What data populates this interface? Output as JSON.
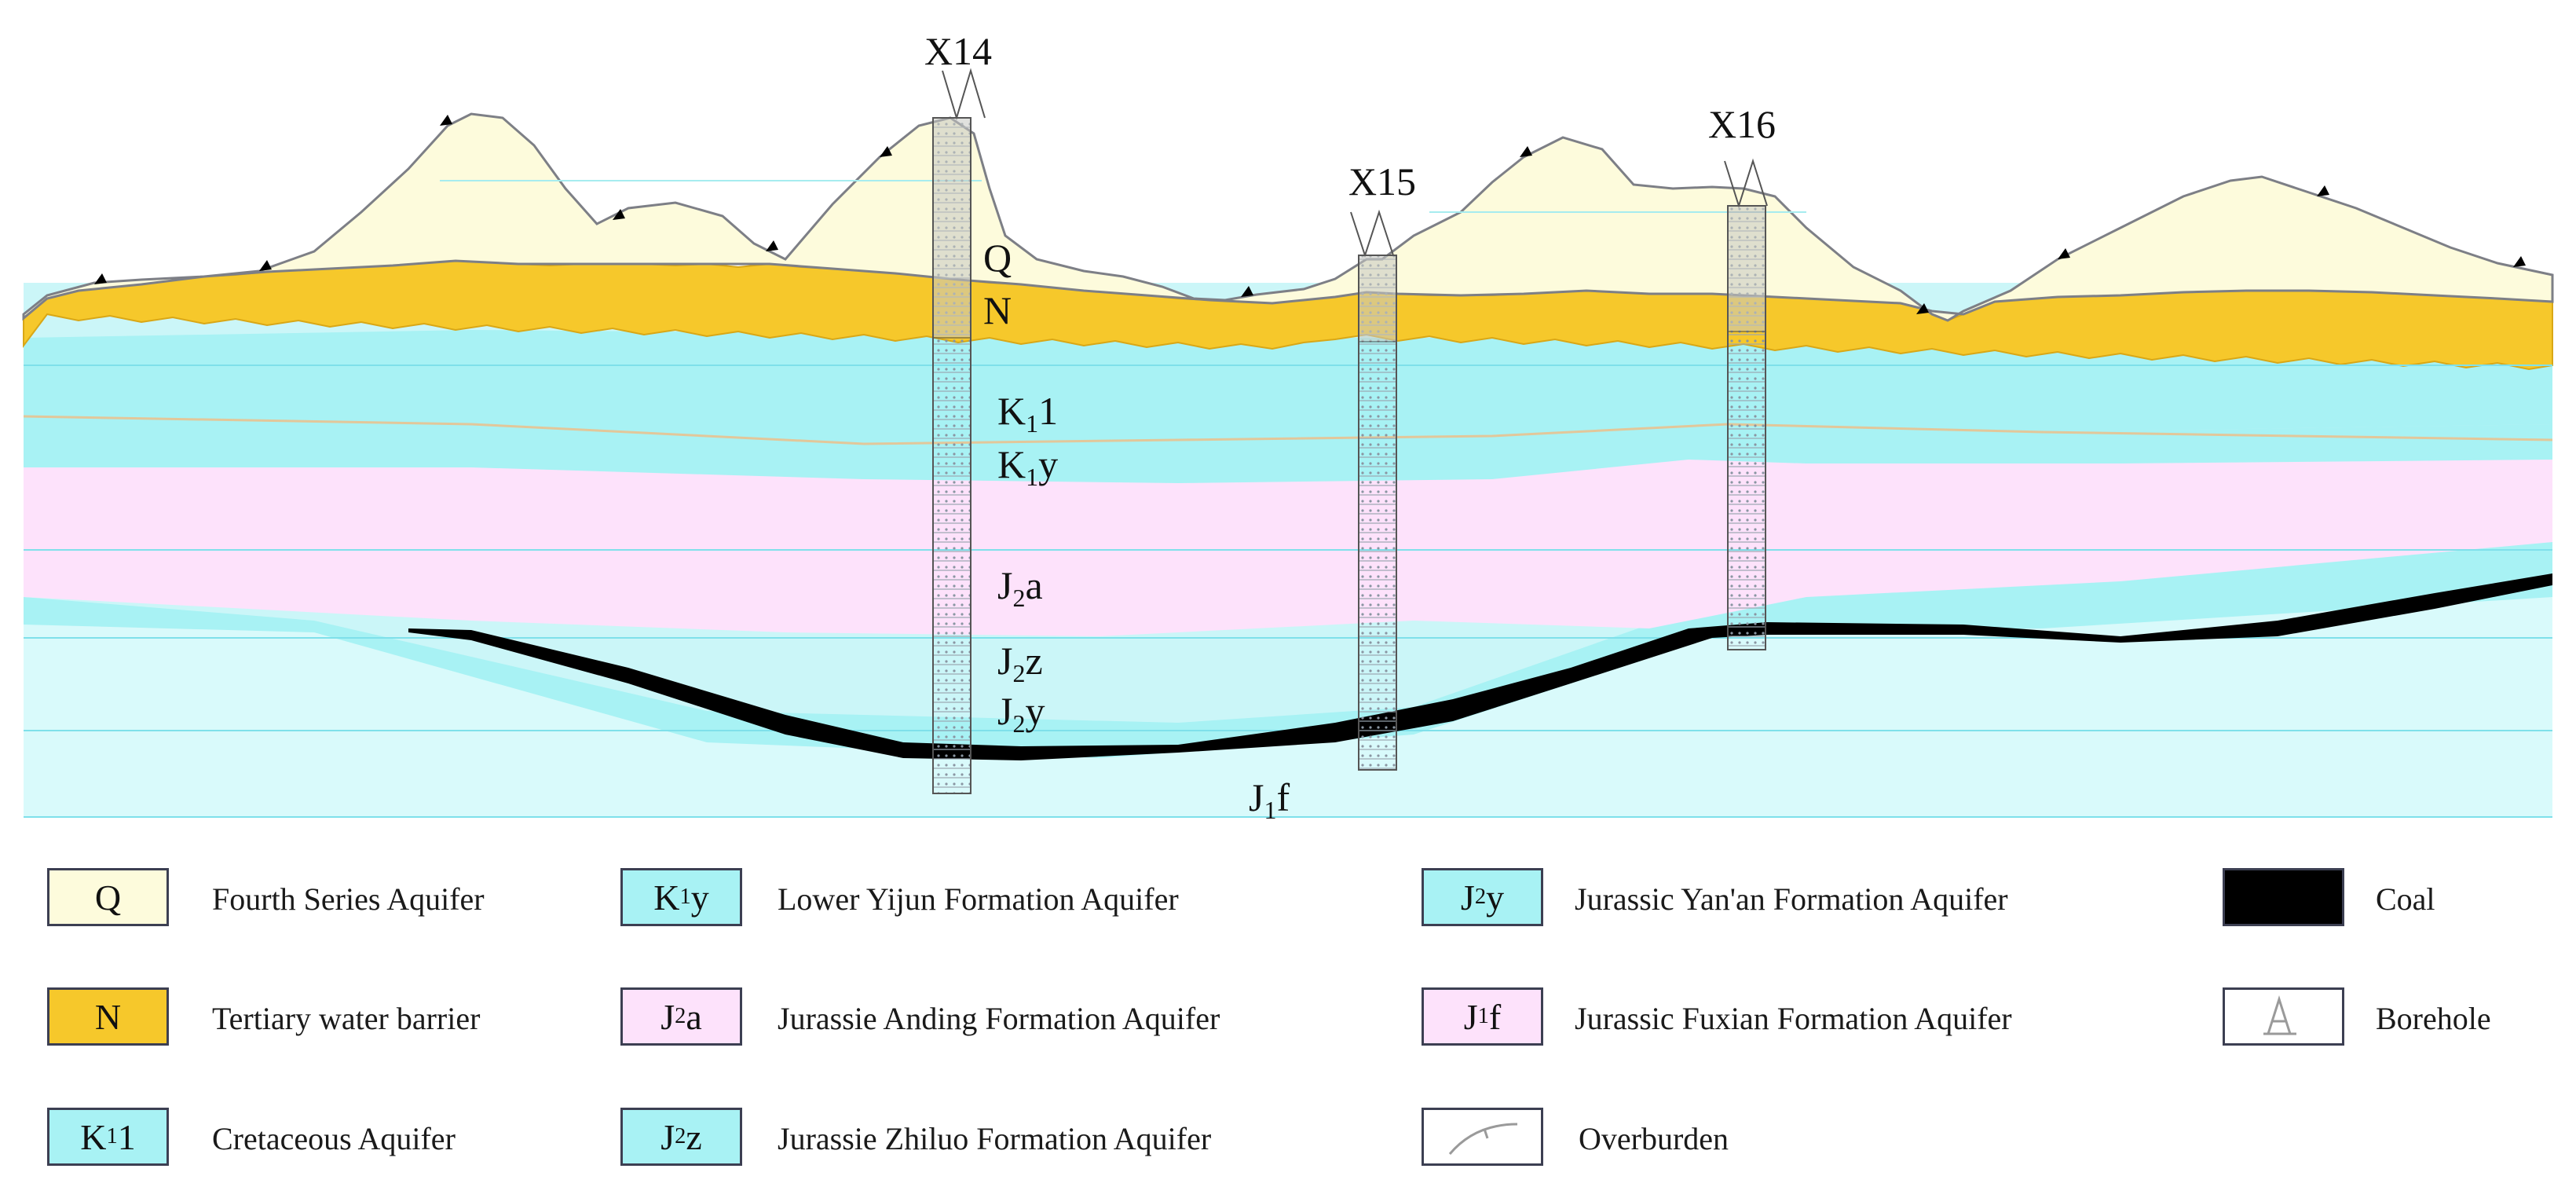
{
  "colors": {
    "quaternary": "#fdfbdc",
    "tertiary": "#f6c82b",
    "aquifer_cyan": "#a8f2f4",
    "aquifer_pink": "#fde2fb",
    "coal": "#000000",
    "line_cyan": "#7fe0ea",
    "outline": "#3c3f52"
  },
  "boreholes": [
    {
      "id": "X14",
      "label": "X14"
    },
    {
      "id": "X15",
      "label": "X15"
    },
    {
      "id": "X16",
      "label": "X16"
    }
  ],
  "strata_labels": [
    {
      "id": "q",
      "base": "Q",
      "sub": "",
      "suffix": ""
    },
    {
      "id": "n",
      "base": "N",
      "sub": "",
      "suffix": ""
    },
    {
      "id": "k1l",
      "base": "K",
      "sub": "1",
      "suffix": "1"
    },
    {
      "id": "k1y",
      "base": "K",
      "sub": "1",
      "suffix": "y"
    },
    {
      "id": "j2a",
      "base": "J",
      "sub": "2",
      "suffix": "a"
    },
    {
      "id": "j2z",
      "base": "J",
      "sub": "2",
      "suffix": "z"
    },
    {
      "id": "j2y",
      "base": "J",
      "sub": "2",
      "suffix": "y"
    },
    {
      "id": "j1f",
      "base": "J",
      "sub": "1",
      "suffix": "f"
    }
  ],
  "legend": [
    {
      "id": "q",
      "swatch": {
        "base": "Q",
        "sub": "",
        "suffix": ""
      },
      "fill": "#fdfbdc",
      "label": "Fourth Series Aquifer"
    },
    {
      "id": "n",
      "swatch": {
        "base": "N",
        "sub": "",
        "suffix": ""
      },
      "fill": "#f6c82b",
      "label": "Tertiary water barrier"
    },
    {
      "id": "k1l",
      "swatch": {
        "base": "K",
        "sub": "1",
        "suffix": "1"
      },
      "fill": "#a8f2f4",
      "label": "Cretaceous Aquifer"
    },
    {
      "id": "k1y",
      "swatch": {
        "base": "K",
        "sub": "1",
        "suffix": "y"
      },
      "fill": "#a8f2f4",
      "label": "Lower Yijun Formation Aquifer"
    },
    {
      "id": "j2a",
      "swatch": {
        "base": "J",
        "sub": "2",
        "suffix": "a"
      },
      "fill": "#fde2fb",
      "label": "Jurassie Anding Formation Aquifer"
    },
    {
      "id": "j2z",
      "swatch": {
        "base": "J",
        "sub": "2",
        "suffix": "z"
      },
      "fill": "#a8f2f4",
      "label": "Jurassie Zhiluo Formation Aquifer"
    },
    {
      "id": "j2y",
      "swatch": {
        "base": "J",
        "sub": "2",
        "suffix": "y"
      },
      "fill": "#a8f2f4",
      "label": "Jurassic Yan'an Formation Aquifer"
    },
    {
      "id": "j1f",
      "swatch": {
        "base": "J",
        "sub": "1",
        "suffix": "f"
      },
      "fill": "#fde2fb",
      "label": "Jurassic Fuxian Formation Aquifer"
    },
    {
      "id": "overburden",
      "swatch": null,
      "fill": "#ffffff",
      "label": "Overburden",
      "icon": "overburden-icon"
    },
    {
      "id": "coal",
      "swatch": null,
      "fill": "#000000",
      "label": "Coal"
    },
    {
      "id": "borehole",
      "swatch": null,
      "fill": "#ffffff",
      "label": "Borehole",
      "icon": "borehole-icon"
    }
  ]
}
